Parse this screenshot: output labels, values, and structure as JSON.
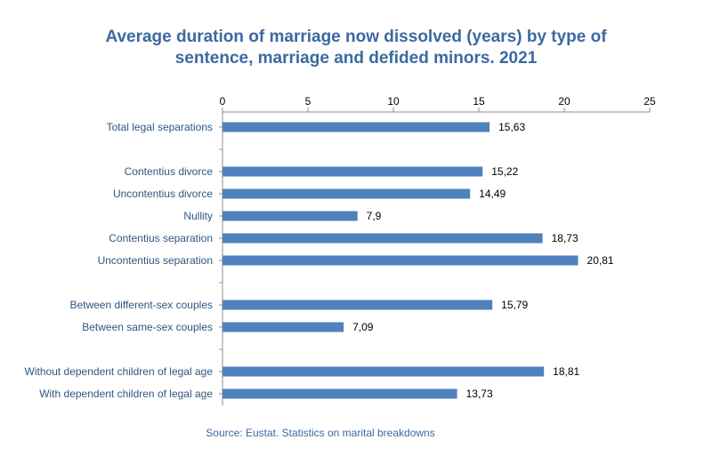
{
  "colors": {
    "bar": "#4f81bd",
    "title": "#3b6aa0",
    "category_text": "#2f5680",
    "axis": "#8c8c8c"
  },
  "chart_data": {
    "type": "bar",
    "orientation": "horizontal",
    "title": "Average duration of marriage now dissolved (years) by type of sentence, marriage and defided minors. 2021",
    "title_line1": "Average duration of marriage now dissolved (years) by type of",
    "title_line2": "sentence, marriage and defided minors. 2021",
    "xlim": [
      0,
      25
    ],
    "xticks": [
      0,
      5,
      10,
      15,
      20,
      25
    ],
    "axis_position": "top",
    "categories": [
      "Total legal separations",
      "",
      "Contentius divorce",
      "Uncontentius divorce",
      "Nullity",
      "Contentius separation",
      "Uncontentius separation",
      "",
      "Between different-sex couples",
      "Between same-sex couples",
      "",
      "Without dependent children of legal age",
      "With dependent children of legal age"
    ],
    "values": [
      15.63,
      null,
      15.22,
      14.49,
      7.9,
      18.73,
      20.81,
      null,
      15.79,
      7.09,
      null,
      18.81,
      13.73
    ],
    "value_labels": [
      "15,63",
      "",
      "15,22",
      "14,49",
      "7,9",
      "18,73",
      "20,81",
      "",
      "15,79",
      "7,09",
      "",
      "18,81",
      "13,73"
    ]
  },
  "source": "Source: Eustat. Statistics on marital breakdowns"
}
